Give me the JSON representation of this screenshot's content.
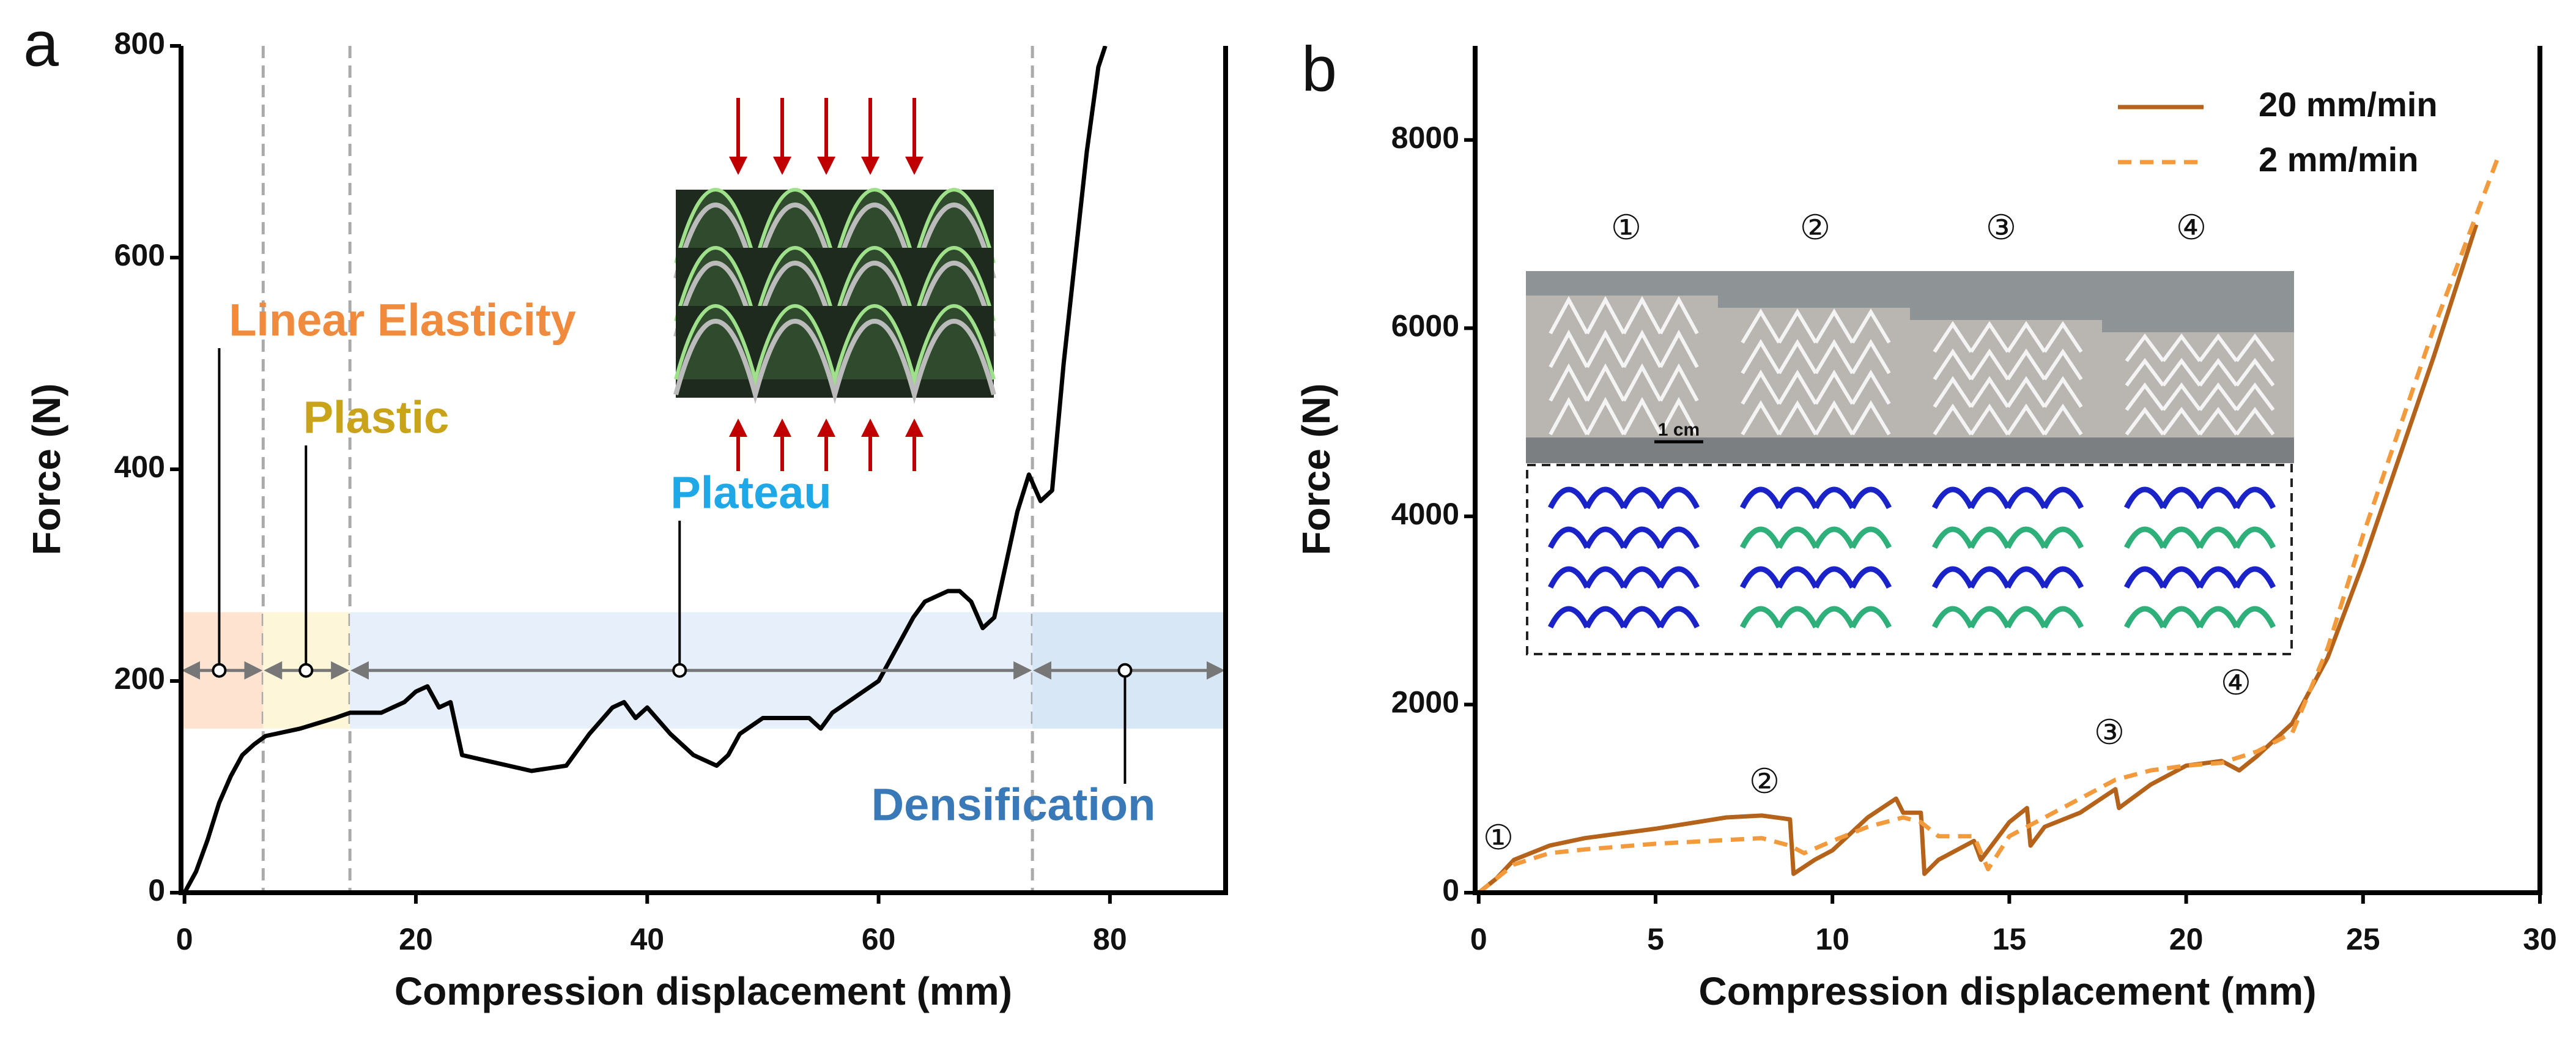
{
  "chart_data": [
    {
      "type": "line",
      "panel_label": "a",
      "x_label": "Compression displacement (mm)",
      "y_label": "Force (N)",
      "xlim": [
        -0.3,
        90
      ],
      "ylim": [
        0,
        800
      ],
      "xticks": [
        0,
        20,
        40,
        60,
        80
      ],
      "yticks": [
        0,
        200,
        400,
        600,
        800
      ],
      "series": [
        {
          "color": "#000000",
          "x": [
            0,
            1,
            2,
            3,
            4,
            5,
            6,
            7,
            10,
            13,
            14.3,
            17,
            19,
            20,
            21,
            22,
            23,
            24,
            26,
            30,
            33,
            35,
            37,
            38,
            39,
            40,
            42,
            44,
            46,
            47,
            48,
            50,
            52,
            54,
            55,
            56,
            58,
            60,
            62,
            63,
            64,
            66,
            67,
            68,
            69,
            70,
            71,
            72,
            73,
            74,
            75,
            76,
            77,
            78,
            79,
            79.6
          ],
          "values": [
            0,
            20,
            50,
            85,
            110,
            130,
            140,
            148,
            155,
            165,
            170,
            170,
            180,
            190,
            195,
            175,
            180,
            130,
            125,
            115,
            120,
            150,
            175,
            180,
            165,
            175,
            150,
            130,
            120,
            130,
            150,
            165,
            165,
            165,
            155,
            170,
            185,
            200,
            240,
            260,
            275,
            285,
            285,
            275,
            250,
            260,
            310,
            360,
            395,
            370,
            380,
            500,
            600,
            700,
            780,
            800
          ]
        }
      ],
      "regions": [
        {
          "name": "Linear Elasticity",
          "color": "#f08a3c",
          "x": [
            -0.3,
            6.8
          ]
        },
        {
          "name": "Plastic",
          "color": "#c9a31a",
          "x": [
            6.8,
            14.3
          ]
        },
        {
          "name": "Plateau",
          "color": "#1ea8e8",
          "x": [
            14.3,
            73.3
          ]
        },
        {
          "name": "Densification",
          "color": "#3a79b8",
          "x": [
            73.3,
            90
          ]
        }
      ],
      "band_ylim": [
        155,
        265
      ],
      "arrow_y": 210
    },
    {
      "type": "line",
      "panel_label": "b",
      "x_label": "Compression displacement (mm)",
      "y_label": "Force (N)",
      "xlim": [
        -0.1,
        30
      ],
      "ylim": [
        0,
        9000
      ],
      "xticks": [
        0,
        5,
        10,
        15,
        20,
        25,
        30
      ],
      "yticks": [
        0,
        2000,
        4000,
        6000,
        8000
      ],
      "legend": "upper right",
      "series": [
        {
          "name": "20 mm/min",
          "color": "#b5621b",
          "dashed": false,
          "x": [
            0,
            0.5,
            1,
            2,
            3,
            5,
            7,
            8,
            8.8,
            8.9,
            9.5,
            10,
            11,
            11.8,
            12,
            12.5,
            12.6,
            13,
            14,
            14.2,
            15,
            15.5,
            15.6,
            16,
            17,
            18,
            18.1,
            19,
            20,
            21,
            21.5,
            22,
            23,
            24,
            25,
            26,
            27,
            28.2
          ],
          "values": [
            0,
            150,
            350,
            500,
            580,
            680,
            800,
            820,
            780,
            200,
            350,
            450,
            800,
            1000,
            850,
            850,
            200,
            350,
            550,
            350,
            750,
            900,
            500,
            700,
            850,
            1100,
            900,
            1150,
            1350,
            1400,
            1300,
            1450,
            1800,
            2500,
            3500,
            4600,
            5700,
            7100
          ]
        },
        {
          "name": "2 mm/min",
          "color": "#f39a3c",
          "dashed": true,
          "x": [
            0,
            1,
            2,
            3,
            5,
            7,
            8,
            8.8,
            9.2,
            10,
            11,
            12,
            12.5,
            13,
            14,
            14.4,
            15,
            16,
            17,
            18,
            19,
            20,
            21,
            22,
            23,
            24,
            25,
            26,
            27,
            28,
            28.8
          ],
          "values": [
            0,
            300,
            420,
            460,
            520,
            560,
            580,
            500,
            420,
            550,
            700,
            800,
            750,
            600,
            600,
            250,
            600,
            800,
            1000,
            1200,
            1300,
            1350,
            1380,
            1500,
            1700,
            2600,
            3800,
            4900,
            6000,
            7000,
            7800
          ]
        }
      ],
      "stage_labels": [
        "①",
        "②",
        "③",
        "④"
      ],
      "scale_bar": "1 cm"
    }
  ]
}
